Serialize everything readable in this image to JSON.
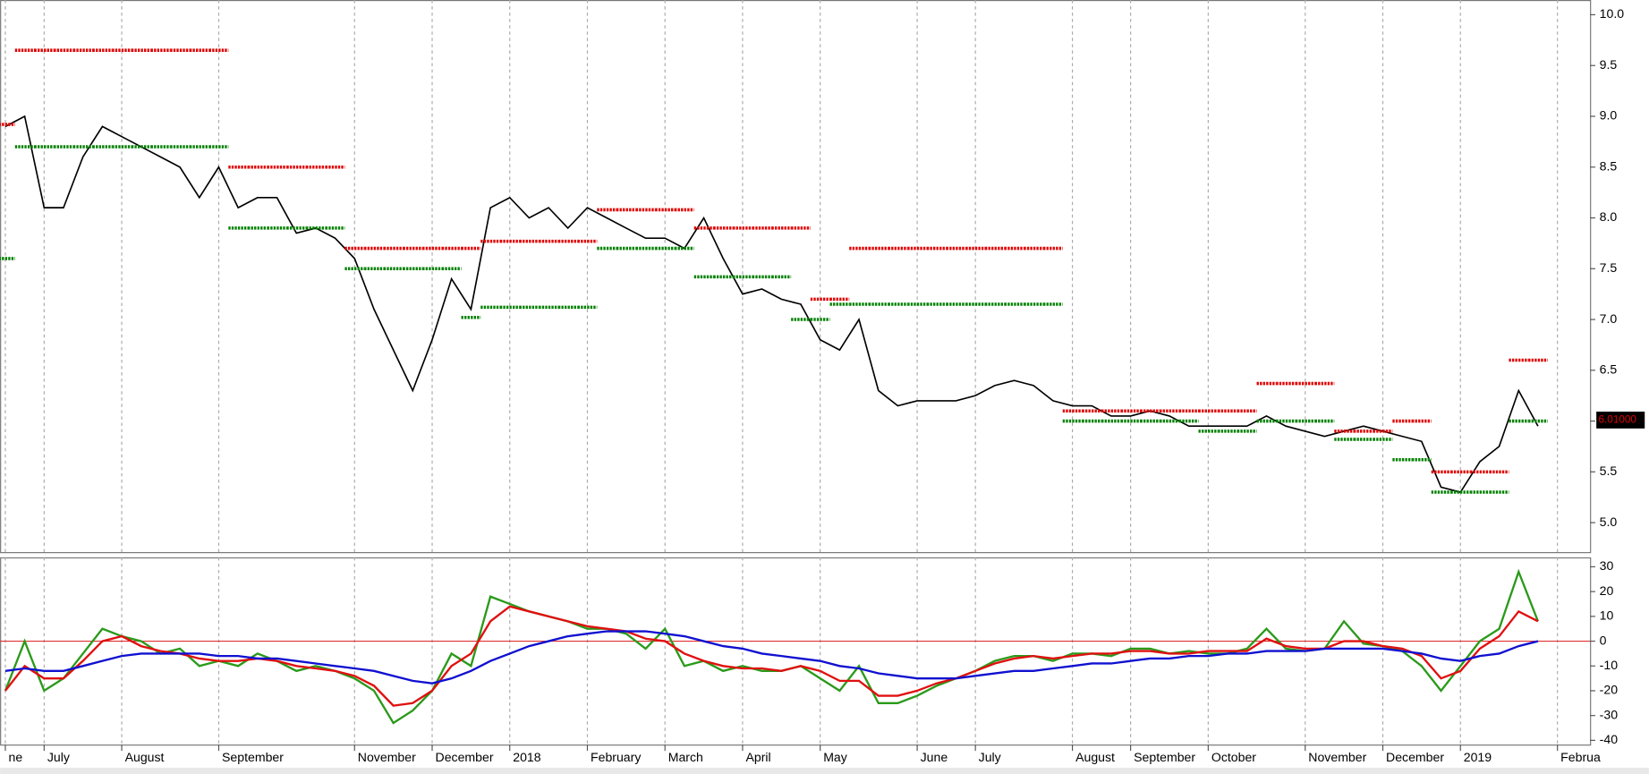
{
  "chart_data": [
    {
      "type": "line",
      "categories": [
        "ne",
        null,
        "July",
        null,
        null,
        null,
        "August",
        null,
        null,
        null,
        null,
        "September",
        null,
        null,
        null,
        null,
        null,
        null,
        "November",
        null,
        null,
        null,
        "December",
        null,
        null,
        null,
        "2018",
        null,
        null,
        null,
        "February",
        null,
        null,
        null,
        "March",
        null,
        null,
        null,
        "April",
        null,
        null,
        null,
        "May",
        null,
        null,
        null,
        null,
        "June",
        null,
        null,
        "July",
        null,
        null,
        null,
        null,
        "August",
        null,
        null,
        "September",
        null,
        null,
        null,
        "October",
        null,
        null,
        null,
        null,
        "November",
        null,
        null,
        null,
        "December",
        null,
        null,
        null,
        "2019",
        null,
        null,
        null,
        null,
        "Februa"
      ],
      "series": [
        {
          "color": "#000000",
          "style": "line",
          "values": [
            8.9,
            9.0,
            8.1,
            8.1,
            8.6,
            8.9,
            8.8,
            8.7,
            8.6,
            8.5,
            8.2,
            8.5,
            8.1,
            8.2,
            8.2,
            7.85,
            7.9,
            7.8,
            7.6,
            7.1,
            6.7,
            6.3,
            6.8,
            7.4,
            7.1,
            8.1,
            8.2,
            8.0,
            8.1,
            7.9,
            8.1,
            8.0,
            7.9,
            7.8,
            7.8,
            7.7,
            8.0,
            7.6,
            7.25,
            7.3,
            7.2,
            7.15,
            6.8,
            6.7,
            7.0,
            6.3,
            6.15,
            6.2,
            6.2,
            6.2,
            6.25,
            6.35,
            6.4,
            6.35,
            6.2,
            6.15,
            6.15,
            6.05,
            6.05,
            6.1,
            6.05,
            5.95,
            5.95,
            5.95,
            5.95,
            6.05,
            5.95,
            5.9,
            5.85,
            5.9,
            5.95,
            5.9,
            5.85,
            5.8,
            5.35,
            5.3,
            5.6,
            5.75,
            6.3,
            5.95,
            null
          ]
        },
        {
          "color": "#e00000",
          "style": "step",
          "values": [
            8.92,
            9.65,
            9.65,
            9.65,
            9.65,
            9.65,
            9.65,
            9.65,
            9.65,
            9.65,
            9.65,
            9.65,
            8.5,
            8.5,
            8.5,
            8.5,
            8.5,
            8.5,
            7.7,
            7.7,
            7.7,
            7.7,
            7.7,
            7.7,
            7.7,
            7.77,
            7.77,
            7.77,
            7.77,
            7.77,
            7.77,
            8.08,
            8.08,
            8.08,
            8.08,
            8.08,
            7.9,
            7.9,
            7.9,
            7.9,
            7.9,
            7.9,
            7.2,
            7.2,
            7.7,
            7.7,
            7.7,
            7.7,
            7.7,
            7.7,
            7.7,
            7.7,
            7.7,
            7.7,
            7.7,
            6.1,
            6.1,
            6.1,
            6.1,
            6.1,
            6.1,
            6.1,
            6.1,
            6.1,
            6.1,
            6.37,
            6.37,
            6.37,
            6.37,
            5.9,
            5.9,
            5.9,
            6.0,
            6.0,
            5.5,
            5.5,
            5.5,
            5.5,
            6.6,
            6.6,
            null
          ]
        },
        {
          "color": "#008000",
          "style": "step",
          "values": [
            7.6,
            8.7,
            8.7,
            8.7,
            8.7,
            8.7,
            8.7,
            8.7,
            8.7,
            8.7,
            8.7,
            8.7,
            7.9,
            7.9,
            7.9,
            7.9,
            7.9,
            7.9,
            7.5,
            7.5,
            7.5,
            7.5,
            7.5,
            7.5,
            7.02,
            7.12,
            7.12,
            7.12,
            7.12,
            7.12,
            7.12,
            7.7,
            7.7,
            7.7,
            7.7,
            7.7,
            7.42,
            7.42,
            7.42,
            7.42,
            7.42,
            7.0,
            7.0,
            7.15,
            7.15,
            7.15,
            7.15,
            7.15,
            7.15,
            7.15,
            7.15,
            7.15,
            7.15,
            7.15,
            7.15,
            6.0,
            6.0,
            6.0,
            6.0,
            6.0,
            6.0,
            6.0,
            5.9,
            5.9,
            5.9,
            6.0,
            6.0,
            6.0,
            6.0,
            5.82,
            5.82,
            5.82,
            5.62,
            5.62,
            5.3,
            5.3,
            5.3,
            5.3,
            6.0,
            6.0,
            null
          ]
        }
      ],
      "last_price": {
        "value": 6.01,
        "label": "6.01000"
      },
      "ylim": [
        4.71,
        10.145
      ],
      "yticks": [
        {
          "value": 10,
          "label": "10.0"
        },
        9.5,
        {
          "value": 9,
          "label": "9.0"
        },
        8.5,
        {
          "value": 8,
          "label": "8.0"
        },
        7.5,
        {
          "value": 7,
          "label": "7.0"
        },
        6.5,
        {
          "value": 6,
          "label": "6.0"
        },
        5.5,
        {
          "value": 5,
          "label": "5.0"
        }
      ],
      "grid": true
    },
    {
      "type": "line",
      "series": [
        {
          "color": "#2a9a1a",
          "style": "line",
          "values": [
            -20,
            0,
            -20,
            -15,
            -5,
            5,
            2,
            0,
            -5,
            -3,
            -10,
            -8,
            -10,
            -5,
            -8,
            -12,
            -10,
            -12,
            -15,
            -20,
            -33,
            -28,
            -20,
            -5,
            -10,
            18,
            15,
            12,
            10,
            8,
            5,
            5,
            3,
            -3,
            5,
            -10,
            -8,
            -12,
            -10,
            -12,
            -12,
            -10,
            -15,
            -20,
            -10,
            -25,
            -25,
            -22,
            -18,
            -15,
            -12,
            -8,
            -6,
            -6,
            -8,
            -5,
            -5,
            -6,
            -3,
            -3,
            -5,
            -4,
            -5,
            -5,
            -3,
            5,
            -3,
            -4,
            -3,
            8,
            -1,
            -2,
            -4,
            -10,
            -20,
            -10,
            0,
            5,
            28,
            8,
            null
          ]
        },
        {
          "color": "#e01010",
          "style": "line",
          "values": [
            -20,
            -10,
            -15,
            -15,
            -8,
            0,
            2,
            -2,
            -4,
            -5,
            -7,
            -8,
            -8,
            -7,
            -8,
            -10,
            -11,
            -12,
            -14,
            -18,
            -26,
            -25,
            -20,
            -10,
            -5,
            8,
            14,
            12,
            10,
            8,
            6,
            5,
            4,
            1,
            0,
            -5,
            -8,
            -10,
            -11,
            -11,
            -12,
            -10,
            -12,
            -16,
            -16,
            -22,
            -22,
            -20,
            -17,
            -15,
            -12,
            -9,
            -7,
            -6,
            -7,
            -6,
            -5,
            -5,
            -4,
            -4,
            -5,
            -5,
            -4,
            -4,
            -4,
            1,
            -2,
            -3,
            -3,
            0,
            0,
            -2,
            -3,
            -6,
            -15,
            -12,
            -3,
            2,
            12,
            8,
            null
          ]
        },
        {
          "color": "#1010d0",
          "style": "line",
          "values": [
            -12,
            -11,
            -12,
            -12,
            -10,
            -8,
            -6,
            -5,
            -5,
            -5,
            -5,
            -6,
            -6,
            -7,
            -7,
            -8,
            -9,
            -10,
            -11,
            -12,
            -14,
            -16,
            -17,
            -15,
            -12,
            -8,
            -5,
            -2,
            0,
            2,
            3,
            4,
            4,
            4,
            3,
            2,
            0,
            -2,
            -3,
            -5,
            -6,
            -7,
            -8,
            -10,
            -11,
            -13,
            -14,
            -15,
            -15,
            -15,
            -14,
            -13,
            -12,
            -12,
            -11,
            -10,
            -9,
            -9,
            -8,
            -7,
            -7,
            -6,
            -6,
            -5,
            -5,
            -4,
            -4,
            -4,
            -3,
            -3,
            -3,
            -3,
            -4,
            -5,
            -7,
            -8,
            -6,
            -5,
            -2,
            0,
            null
          ]
        }
      ],
      "reference_line": {
        "value": 0,
        "color": "#e03030"
      },
      "ylim": [
        -41.7,
        33.8
      ],
      "yticks": [
        30,
        20,
        10,
        0,
        -10,
        -20,
        -30,
        -40
      ],
      "grid": true
    }
  ]
}
